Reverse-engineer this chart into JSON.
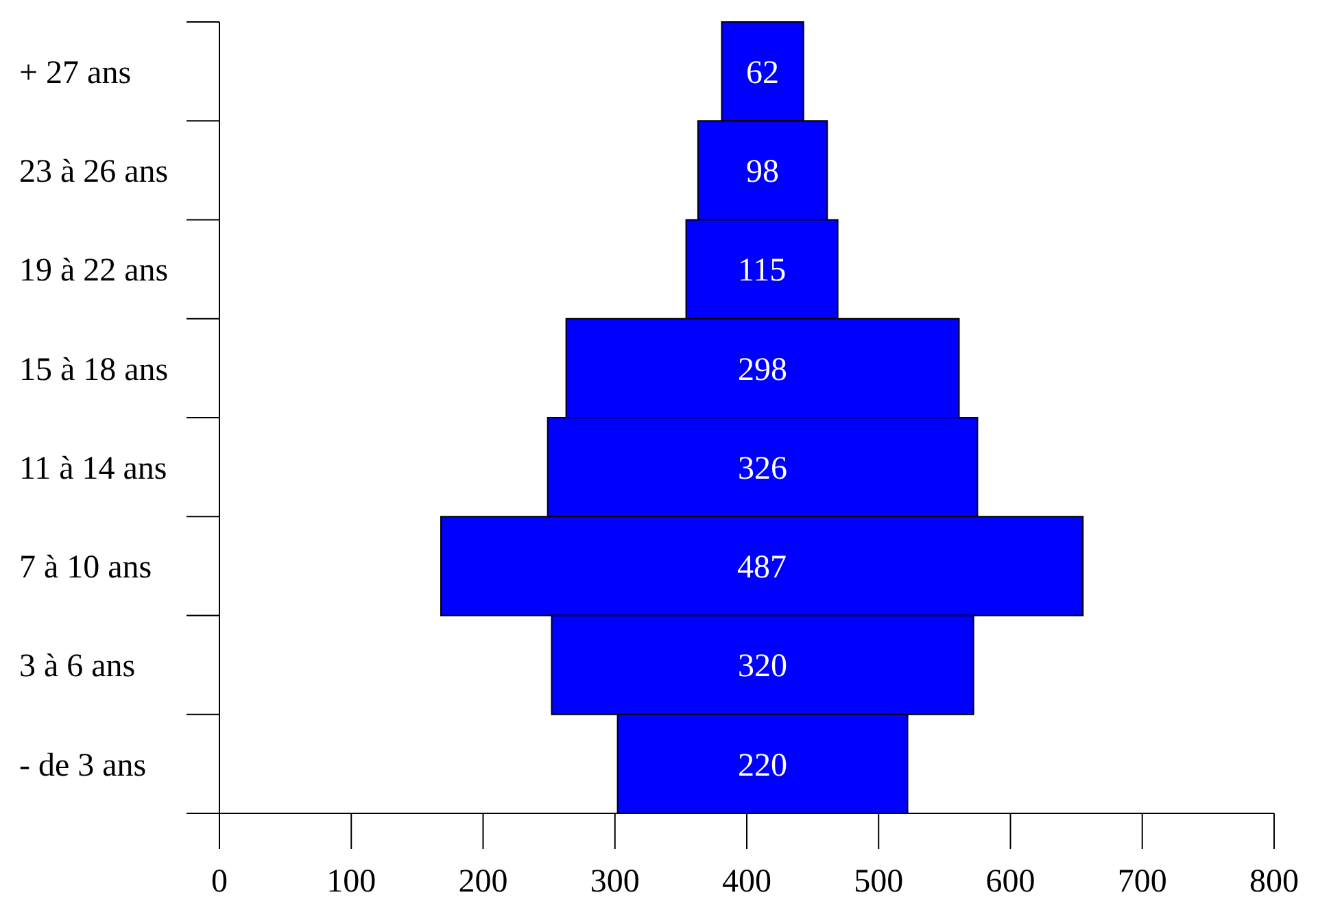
{
  "chart_data": {
    "type": "bar",
    "orientation": "horizontal",
    "categories": [
      "+ 27 ans",
      "23 à 26 ans",
      "19 à 22 ans",
      "15 à 18 ans",
      "11 à 14 ans",
      "7 à 10 ans",
      "3 à 6 ans",
      "- de 3 ans"
    ],
    "values": [
      62,
      98,
      115,
      298,
      326,
      487,
      320,
      220
    ],
    "base": [
      381,
      363,
      354,
      263,
      249,
      168,
      252,
      302
    ],
    "color": "#0000ff",
    "xlim": [
      0,
      800
    ],
    "xticks": [
      0,
      100,
      200,
      300,
      400,
      500,
      600,
      700,
      800
    ],
    "data_labels": true
  }
}
